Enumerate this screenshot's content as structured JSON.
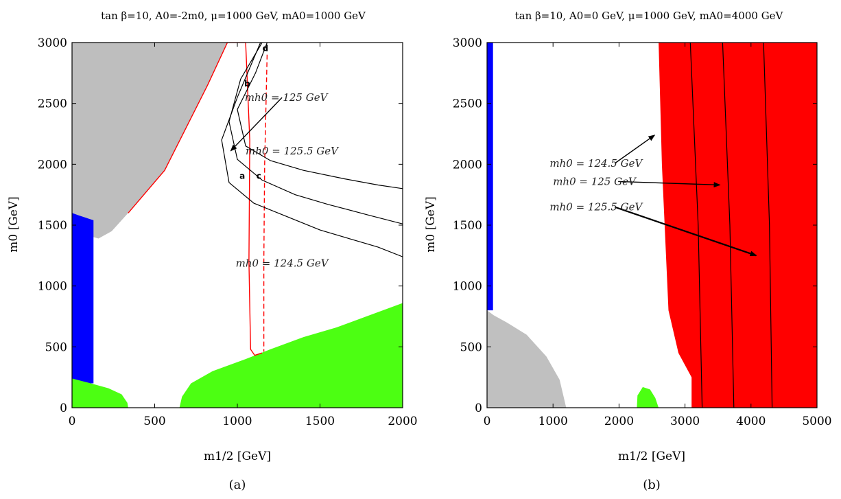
{
  "chart_data": [
    {
      "type": "area",
      "title": "tan β=10, A0=-2m0, μ=1000 GeV, mA0=1000 GeV",
      "xlabel": "m1/2 [GeV]",
      "ylabel": "m0 [GeV]",
      "xlim": [
        0,
        2000
      ],
      "ylim": [
        0,
        3000
      ],
      "xticks": [
        "0",
        "500",
        "1000",
        "1500",
        "2000"
      ],
      "yticks": [
        "0",
        "500",
        "1000",
        "1500",
        "2000",
        "2500",
        "3000"
      ],
      "caption": "(a)",
      "colors": {
        "gray": "#bebebe",
        "blue": "#0000ff",
        "green": "#4cff12",
        "red": "#ff0000",
        "black": "#000000"
      },
      "regions": {
        "gray": [
          [
            0,
            3000
          ],
          [
            940,
            3000
          ],
          [
            820,
            2650
          ],
          [
            560,
            1950
          ],
          [
            340,
            1600
          ],
          [
            240,
            1450
          ],
          [
            160,
            1390
          ],
          [
            80,
            1420
          ],
          [
            0,
            1480
          ]
        ],
        "blue": [
          [
            0,
            1600
          ],
          [
            40,
            1580
          ],
          [
            130,
            1540
          ],
          [
            130,
            200
          ],
          [
            0,
            200
          ]
        ],
        "green_left": [
          [
            0,
            240
          ],
          [
            100,
            205
          ],
          [
            220,
            160
          ],
          [
            300,
            110
          ],
          [
            335,
            40
          ],
          [
            340,
            0
          ],
          [
            0,
            0
          ]
        ],
        "green_right": [
          [
            650,
            0
          ],
          [
            665,
            90
          ],
          [
            720,
            200
          ],
          [
            850,
            300
          ],
          [
            1050,
            400
          ],
          [
            1200,
            480
          ],
          [
            1400,
            580
          ],
          [
            1600,
            660
          ],
          [
            1800,
            760
          ],
          [
            2000,
            860
          ],
          [
            2000,
            0
          ]
        ]
      },
      "curves": {
        "red_solid": [
          [
            340,
            1600
          ],
          [
            560,
            1950
          ],
          [
            820,
            2650
          ],
          [
            940,
            3000
          ],
          [
            1050,
            3000
          ],
          [
            1075,
            2200
          ],
          [
            1070,
            1200
          ],
          [
            1080,
            480
          ],
          [
            1105,
            430
          ],
          [
            1150,
            450
          ]
        ],
        "red_dashed": [
          [
            1180,
            2900
          ],
          [
            1165,
            2000
          ],
          [
            1160,
            1200
          ],
          [
            1160,
            460
          ]
        ],
        "higgs_124_5": [
          [
            1140,
            3000
          ],
          [
            1000,
            2550
          ],
          [
            905,
            2200
          ],
          [
            950,
            1850
          ],
          [
            1100,
            1680
          ],
          [
            1300,
            1570
          ],
          [
            1500,
            1460
          ],
          [
            1700,
            1380
          ],
          [
            1850,
            1320
          ],
          [
            2000,
            1240
          ]
        ],
        "higgs_125": [
          [
            1150,
            3000
          ],
          [
            1020,
            2700
          ],
          [
            950,
            2350
          ],
          [
            1000,
            2040
          ],
          [
            1150,
            1870
          ],
          [
            1350,
            1750
          ],
          [
            1550,
            1670
          ],
          [
            1800,
            1580
          ],
          [
            2000,
            1510
          ]
        ],
        "higgs_125_5": [
          [
            1180,
            3000
          ],
          [
            1110,
            2750
          ],
          [
            1000,
            2450
          ],
          [
            1050,
            2150
          ],
          [
            1200,
            2030
          ],
          [
            1400,
            1950
          ],
          [
            1650,
            1880
          ],
          [
            1850,
            1830
          ],
          [
            2000,
            1800
          ]
        ]
      },
      "point_labels": [
        {
          "text": "a",
          "x": 1030,
          "y": 1880
        },
        {
          "text": "b",
          "x": 1060,
          "y": 2640
        },
        {
          "text": "c",
          "x": 1130,
          "y": 1880
        },
        {
          "text": "d",
          "x": 1170,
          "y": 2930
        }
      ],
      "annotations": [
        {
          "text": "mh0 = 125 GeV",
          "x": 1295,
          "y": 2520,
          "arrow_to": [
            960,
            2110
          ]
        },
        {
          "text": "mh0 = 125.5 GeV",
          "x": 1330,
          "y": 2080
        },
        {
          "text": "mh0 = 124.5 GeV",
          "x": 1270,
          "y": 1160
        }
      ]
    },
    {
      "type": "area",
      "title": "tan β=10, A0=0 GeV, μ=1000 GeV, mA0=4000 GeV",
      "xlabel": "m1/2 [GeV]",
      "ylabel": "m0 [GeV]",
      "xlim": [
        0,
        5000
      ],
      "ylim": [
        0,
        3000
      ],
      "xticks": [
        "0",
        "1000",
        "2000",
        "3000",
        "4000",
        "5000"
      ],
      "yticks": [
        "0",
        "500",
        "1000",
        "1500",
        "2000",
        "2500",
        "3000"
      ],
      "caption": "(b)",
      "colors": {
        "gray": "#c0c0c0",
        "blue": "#0000ff",
        "green": "#4cff12",
        "red": "#ff0000",
        "black": "#000000"
      },
      "regions": {
        "blue": [
          [
            0,
            3000
          ],
          [
            90,
            3000
          ],
          [
            90,
            800
          ],
          [
            0,
            800
          ]
        ],
        "gray": [
          [
            0,
            800
          ],
          [
            100,
            760
          ],
          [
            300,
            700
          ],
          [
            600,
            600
          ],
          [
            900,
            420
          ],
          [
            1100,
            230
          ],
          [
            1200,
            0
          ],
          [
            0,
            0
          ]
        ],
        "green_blob": [
          [
            2270,
            0
          ],
          [
            2280,
            100
          ],
          [
            2360,
            170
          ],
          [
            2470,
            150
          ],
          [
            2550,
            80
          ],
          [
            2600,
            0
          ]
        ],
        "red": [
          [
            2600,
            3000
          ],
          [
            5000,
            3000
          ],
          [
            5000,
            0
          ],
          [
            3100,
            0
          ],
          [
            3100,
            250
          ],
          [
            2900,
            450
          ],
          [
            2750,
            800
          ],
          [
            2650,
            2000
          ],
          [
            2600,
            3000
          ]
        ]
      },
      "curves": {
        "higgs_124_5": [
          [
            3080,
            3000
          ],
          [
            3200,
            1500
          ],
          [
            3260,
            0
          ]
        ],
        "higgs_125": [
          [
            3570,
            3000
          ],
          [
            3680,
            1500
          ],
          [
            3740,
            0
          ]
        ],
        "higgs_125_5": [
          [
            4190,
            3000
          ],
          [
            4280,
            1500
          ],
          [
            4320,
            0
          ]
        ]
      },
      "annotations": [
        {
          "text": "mh0 = 124.5 GeV",
          "x": 950,
          "y": 1980,
          "arrow_to": [
            2540,
            2240
          ]
        },
        {
          "text": "mh0 = 125 GeV",
          "x": 1000,
          "y": 1830,
          "arrow_to": [
            3530,
            1830
          ]
        },
        {
          "text": "mh0 = 125.5 GeV",
          "x": 950,
          "y": 1620,
          "arrow_to": [
            4080,
            1250
          ]
        }
      ]
    }
  ]
}
